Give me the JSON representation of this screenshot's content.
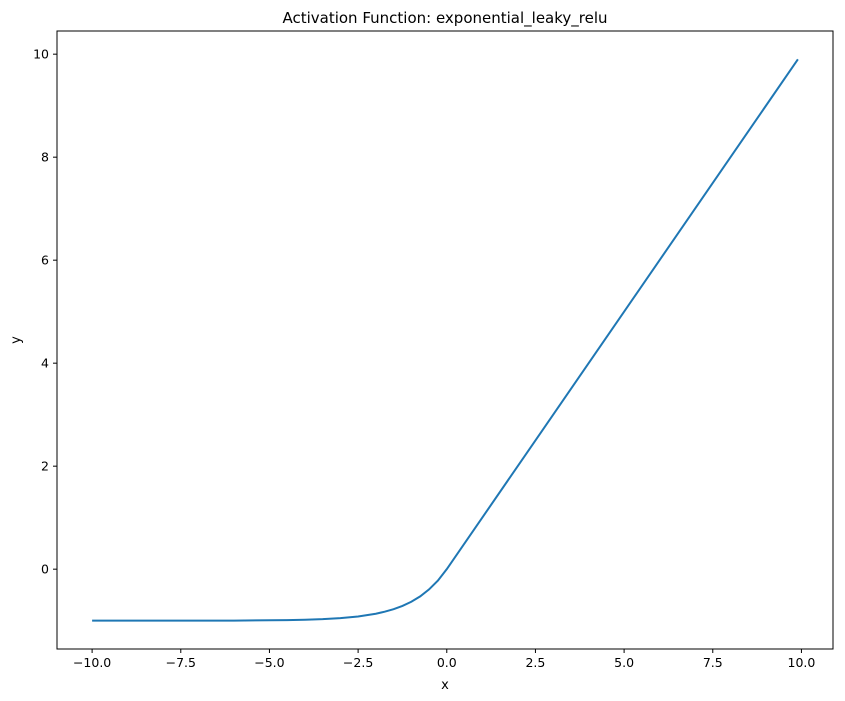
{
  "chart_data": {
    "type": "line",
    "title": "Activation Function: exponential_leaky_relu",
    "xlabel": "x",
    "ylabel": "y",
    "xlim": [
      -10.99,
      10.89
    ],
    "ylim": [
      -1.55,
      10.45
    ],
    "grid": false,
    "legend": "none",
    "xticks": [
      -10.0,
      -7.5,
      -5.0,
      -2.5,
      0.0,
      2.5,
      5.0,
      7.5,
      10.0
    ],
    "xtick_labels": [
      "−10.0",
      "−7.5",
      "−5.0",
      "−2.5",
      "0.0",
      "2.5",
      "5.0",
      "7.5",
      "10.0"
    ],
    "yticks": [
      0,
      2,
      4,
      6,
      8,
      10
    ],
    "ytick_labels": [
      "0",
      "2",
      "4",
      "6",
      "8",
      "10"
    ],
    "series_color": "#1f77b4",
    "series": [
      {
        "x": [
          -10.0,
          -9.0,
          -8.0,
          -7.0,
          -6.0,
          -5.0,
          -4.5,
          -4.0,
          -3.5,
          -3.0,
          -2.5,
          -2.0,
          -1.75,
          -1.5,
          -1.25,
          -1.0,
          -0.75,
          -0.5,
          -0.25,
          0.0,
          2.5,
          5.0,
          7.5,
          9.9
        ],
        "y": [
          -1.0,
          -1.0,
          -1.0,
          -0.999,
          -0.998,
          -0.993,
          -0.989,
          -0.982,
          -0.97,
          -0.95,
          -0.918,
          -0.865,
          -0.826,
          -0.777,
          -0.713,
          -0.632,
          -0.528,
          -0.393,
          -0.221,
          0.0,
          2.5,
          5.0,
          7.5,
          9.9
        ]
      }
    ]
  }
}
